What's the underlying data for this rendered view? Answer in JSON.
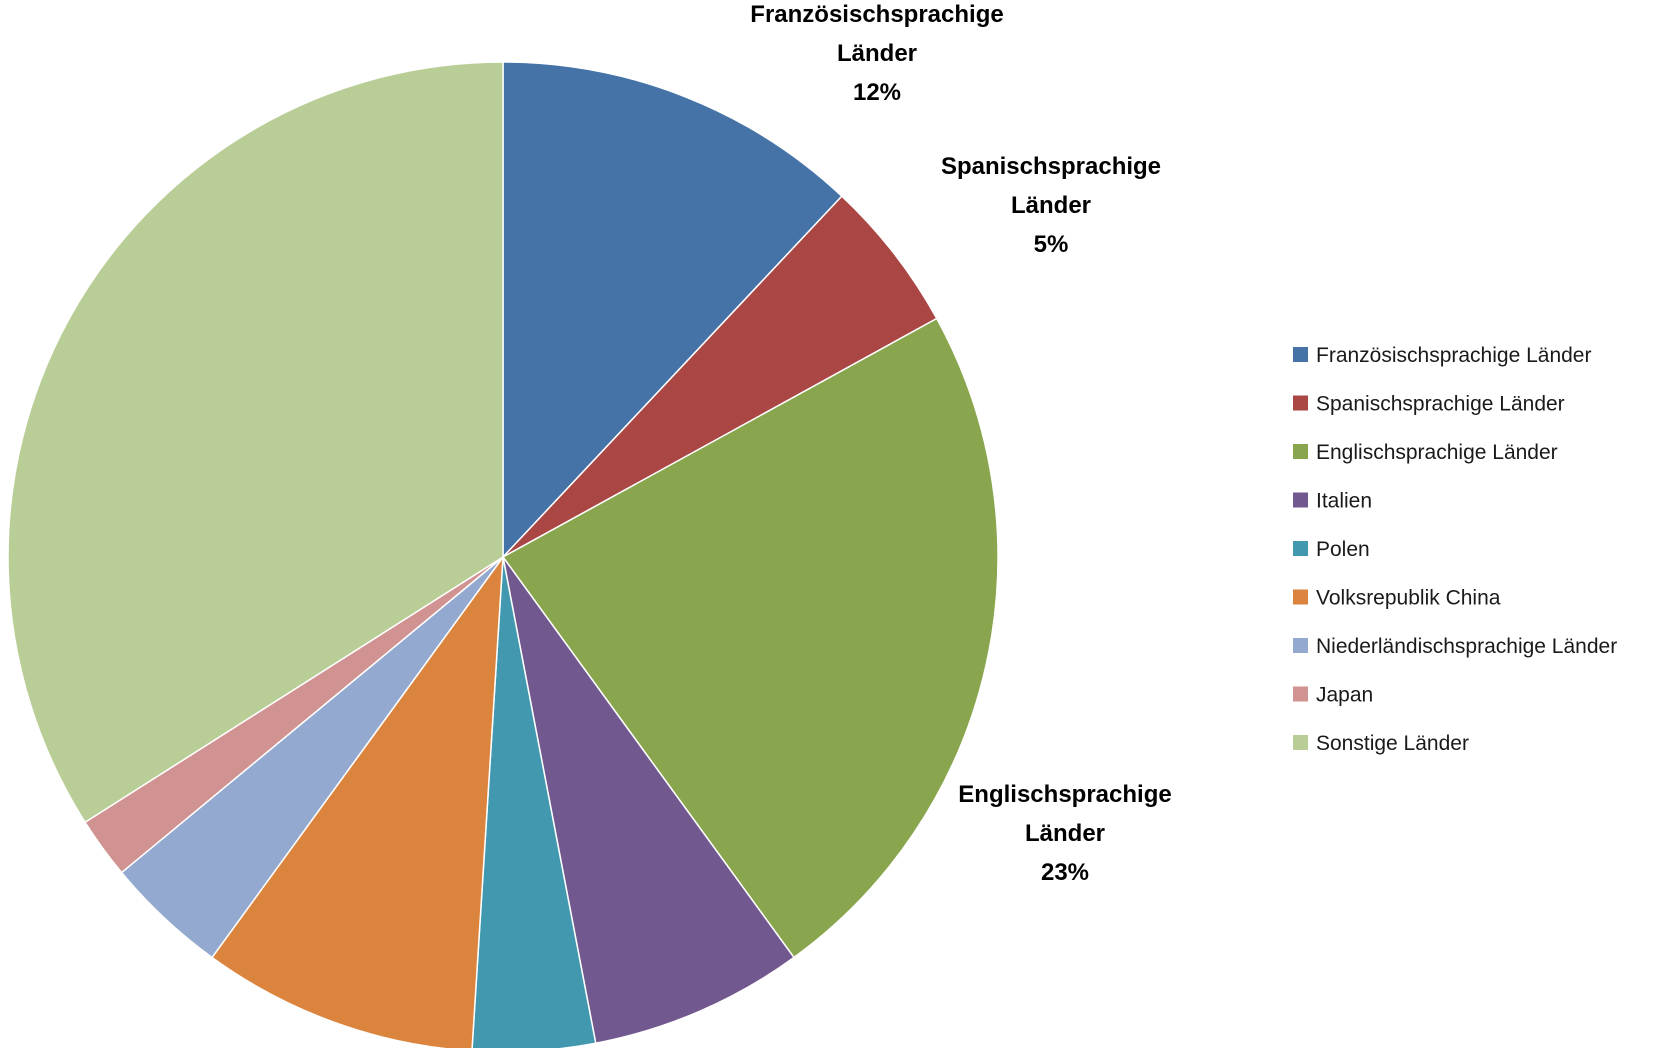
{
  "chart_data": {
    "type": "pie",
    "title": "",
    "start_angle_deg": 0,
    "direction": "clockwise",
    "legend": {
      "position": "right"
    },
    "slices": [
      {
        "label": "Französischsprachige Länder",
        "value": 12,
        "color": "#4572A7",
        "data_label": [
          "Französischsprachige",
          "Länder",
          "12%"
        ]
      },
      {
        "label": "Spanischsprachige Länder",
        "value": 5,
        "color": "#AA4643",
        "data_label": [
          "Spanischsprachige",
          "Länder",
          "5%"
        ]
      },
      {
        "label": "Englischsprachige Länder",
        "value": 23,
        "color": "#89A54E",
        "data_label": [
          "Englischsprachige",
          "Länder",
          "23%"
        ]
      },
      {
        "label": "Italien",
        "value": 7,
        "color": "#71588F",
        "data_label": null
      },
      {
        "label": "Polen",
        "value": 4,
        "color": "#4198AF",
        "data_label": null
      },
      {
        "label": "Volksrepublik China",
        "value": 9,
        "color": "#DB843D",
        "data_label": null
      },
      {
        "label": "Niederländischsprachige Länder",
        "value": 4,
        "color": "#93A9CF",
        "data_label": null
      },
      {
        "label": "Japan",
        "value": 2,
        "color": "#D19392",
        "data_label": null
      },
      {
        "label": "Sonstige Länder",
        "value": 34,
        "color": "#B9CD96",
        "data_label": null
      }
    ]
  }
}
